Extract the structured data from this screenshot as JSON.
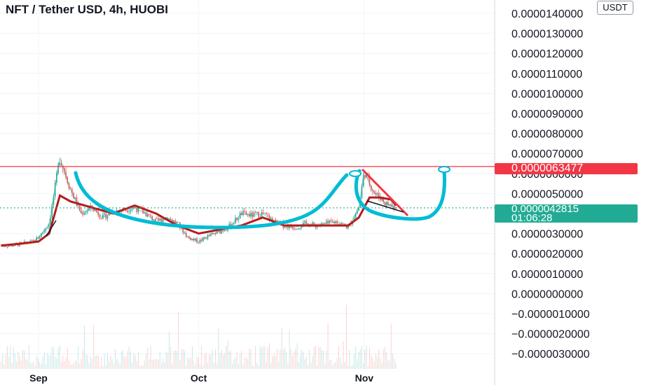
{
  "header": {
    "title": "NFT / Tether USD, 4h, HUOBI"
  },
  "axis": {
    "unit_badge": "USDT"
  },
  "price_tags": {
    "resistance": "0.0000063477",
    "last_price": "0.0000042815",
    "countdown": "01:06:28"
  },
  "colors": {
    "resistance_line": "#f23645",
    "last_price_line": "#22ab94",
    "pattern_curve": "#00bcd4",
    "moving_average": "#b71c1c",
    "candle_up": "#26a69a",
    "candle_down": "#ef5350"
  },
  "chart_data": {
    "type": "line",
    "title": "NFT / Tether USD, 4h, HUOBI",
    "xlabel": "",
    "ylabel": "",
    "y_unit": "USDT",
    "ylim": [
      -3e-06,
      1.4e-05
    ],
    "y_ticks": [
      "0.0000140000",
      "0.0000130000",
      "0.0000120000",
      "0.0000110000",
      "0.0000100000",
      "0.0000090000",
      "0.0000080000",
      "0.0000070000",
      "0.0000060000",
      "0.0000050000",
      "0.0000030000",
      "0.0000020000",
      "0.0000010000",
      "0.0000000000",
      "−0.0000010000",
      "−0.0000020000",
      "−0.0000030000"
    ],
    "x_ticks": [
      "Sep",
      "Oct",
      "Nov"
    ],
    "grid": true,
    "horizontal_lines": [
      {
        "label": "resistance",
        "value": 6.3477e-06
      },
      {
        "label": "last price",
        "value": 4.2815e-06
      }
    ],
    "series": [
      {
        "kind": "price",
        "x": [
          "Aug 25",
          "Aug 27",
          "Aug 29",
          "Aug 31",
          "Sep 1",
          "Sep 3",
          "Sep 5",
          "Sep 7",
          "Sep 9",
          "Sep 11",
          "Sep 13",
          "Sep 15",
          "Sep 17",
          "Sep 19",
          "Sep 21",
          "Sep 23",
          "Sep 25",
          "Sep 27",
          "Sep 29",
          "Oct 1",
          "Oct 3",
          "Oct 5",
          "Oct 7",
          "Oct 9",
          "Oct 11",
          "Oct 13",
          "Oct 15",
          "Oct 17",
          "Oct 19",
          "Oct 21",
          "Oct 23",
          "Oct 25",
          "Oct 27",
          "Oct 29",
          "Oct 30",
          "Oct 31",
          "Nov 1",
          "Nov 2",
          "Nov 3",
          "Nov 4",
          "Nov 5",
          "Nov 6",
          "Nov 7"
        ],
        "values": [
          2.4e-06,
          2.4e-06,
          2.5e-06,
          2.6e-06,
          2.8e-06,
          3.5e-06,
          6.8e-06,
          5.2e-06,
          4e-06,
          4.3e-06,
          3.8e-06,
          4.1e-06,
          4.2e-06,
          4.3e-06,
          4e-06,
          3.6e-06,
          3.8e-06,
          3.5e-06,
          2.8e-06,
          2.6e-06,
          2.9e-06,
          3.1e-06,
          3.4e-06,
          4e-06,
          3.9e-06,
          4e-06,
          3.6e-06,
          3.4e-06,
          3.3e-06,
          3.5e-06,
          3.4e-06,
          3.5e-06,
          3.6e-06,
          3.3e-06,
          3.8e-06,
          4.3e-06,
          6.1e-06,
          5.5e-06,
          5e-06,
          4.8e-06,
          4.5e-06,
          4.4e-06,
          4.3e-06
        ]
      },
      {
        "kind": "moving-average",
        "x": [
          "Aug 25",
          "Aug 29",
          "Sep 1",
          "Sep 3",
          "Sep 5",
          "Sep 7",
          "Sep 11",
          "Sep 15",
          "Sep 19",
          "Sep 23",
          "Sep 27",
          "Oct 1",
          "Oct 5",
          "Oct 9",
          "Oct 13",
          "Oct 17",
          "Oct 21",
          "Oct 25",
          "Oct 29",
          "Oct 31",
          "Nov 2",
          "Nov 4",
          "Nov 6",
          "Nov 7"
        ],
        "values": [
          2.4e-06,
          2.5e-06,
          2.6e-06,
          3e-06,
          4.9e-06,
          4.6e-06,
          4.3e-06,
          4e-06,
          4.4e-06,
          4e-06,
          3.4e-06,
          3e-06,
          3.2e-06,
          3.4e-06,
          3.8e-06,
          3.4e-06,
          3.4e-06,
          3.4e-06,
          3.4e-06,
          3.8e-06,
          4.8e-06,
          4.8e-06,
          4.7e-06,
          4.4e-06
        ]
      }
    ]
  }
}
